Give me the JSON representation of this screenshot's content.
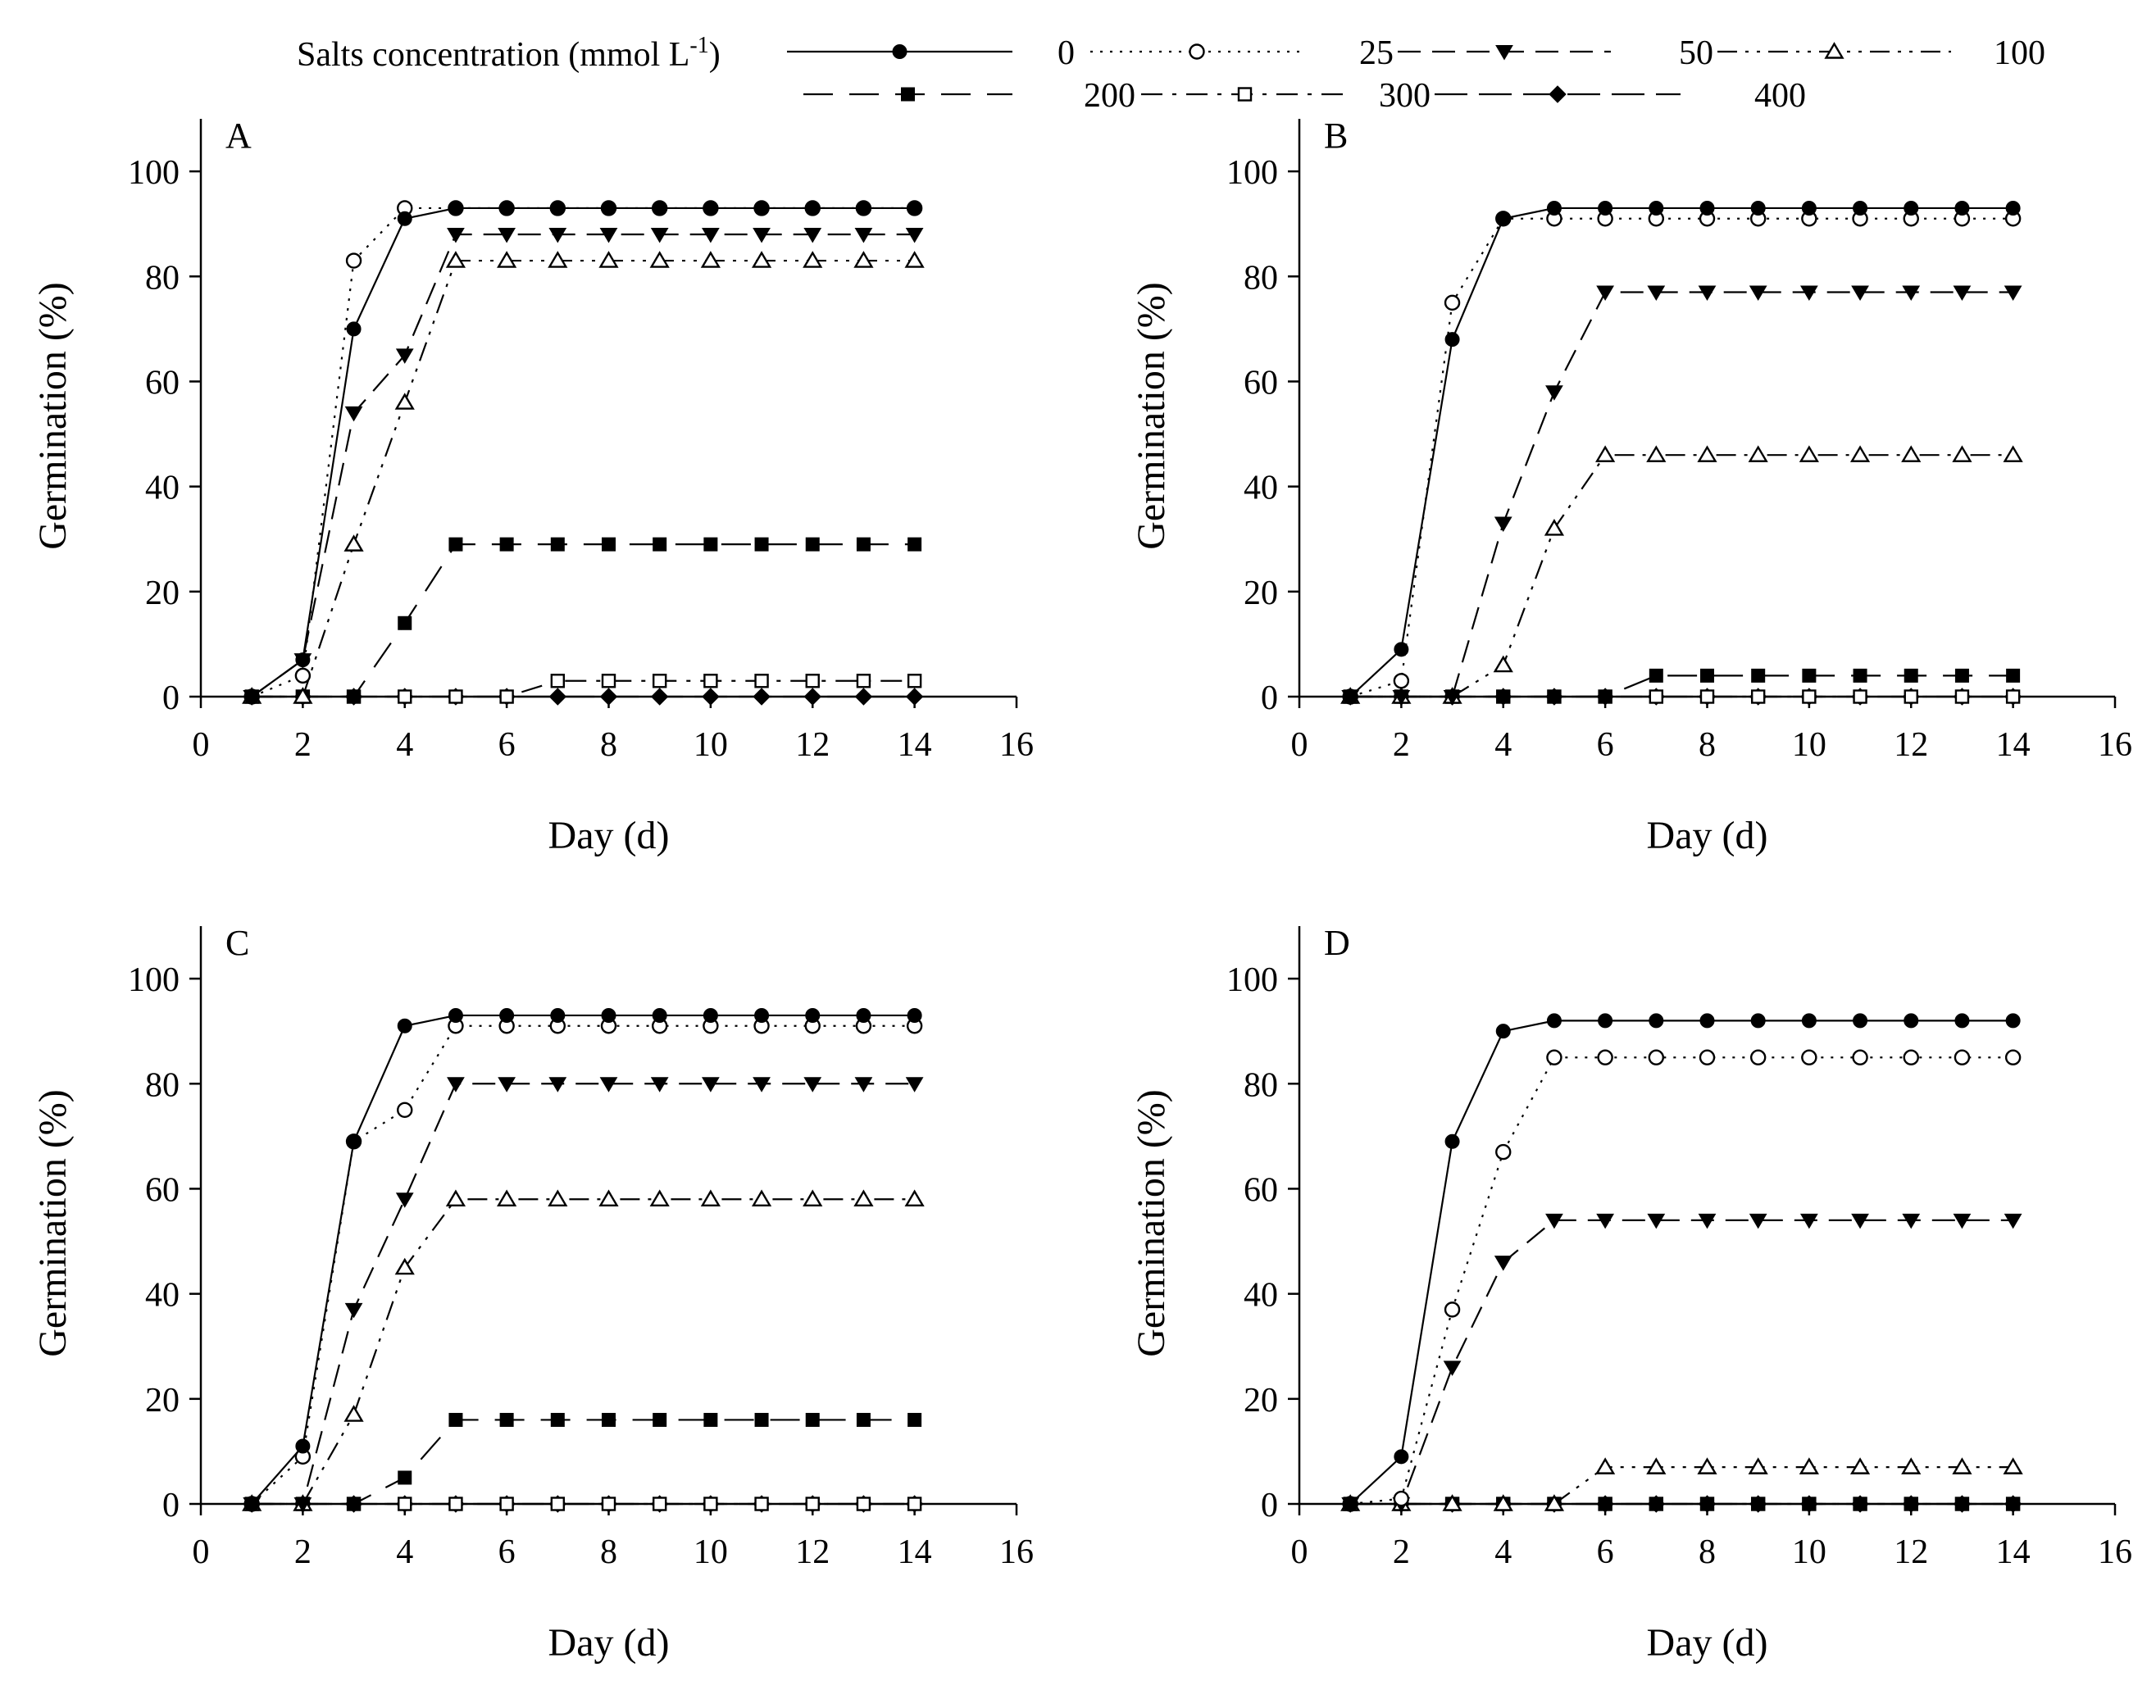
{
  "legend": {
    "title_prefix": "Salts concentration (mmol L",
    "title_superscript": "-1",
    "title_suffix": ")",
    "entries": [
      {
        "label": "0",
        "marker": "filled-circle",
        "dash": "solid"
      },
      {
        "label": "25",
        "marker": "open-circle",
        "dash": "dotted"
      },
      {
        "label": "50",
        "marker": "filled-triangle-down",
        "dash": "dashed"
      },
      {
        "label": "100",
        "marker": "open-triangle-up",
        "dash": "dash-dot-dot"
      },
      {
        "label": "200",
        "marker": "filled-square",
        "dash": "long-dash"
      },
      {
        "label": "300",
        "marker": "open-square",
        "dash": "dash-dot"
      },
      {
        "label": "400",
        "marker": "filled-diamond",
        "dash": "dash-long"
      }
    ]
  },
  "chart_data": [
    {
      "type": "line",
      "panel": "A",
      "xlabel": "Day (d)",
      "ylabel": "Germination  (%)",
      "xlim": [
        0,
        16
      ],
      "ylim": [
        0,
        110
      ],
      "xticks": [
        0,
        2,
        4,
        6,
        8,
        10,
        12,
        14,
        16
      ],
      "yticks": [
        0,
        20,
        40,
        60,
        80,
        100
      ],
      "x": [
        1,
        2,
        3,
        4,
        5,
        6,
        7,
        8,
        9,
        10,
        11,
        12,
        13,
        14
      ],
      "series": [
        {
          "name": "0",
          "values": [
            0,
            7,
            70,
            91,
            93,
            93,
            93,
            93,
            93,
            93,
            93,
            93,
            93,
            93
          ]
        },
        {
          "name": "25",
          "values": [
            0,
            4,
            83,
            93,
            93,
            93,
            93,
            93,
            93,
            93,
            93,
            93,
            93,
            93
          ]
        },
        {
          "name": "50",
          "values": [
            0,
            7,
            54,
            65,
            88,
            88,
            88,
            88,
            88,
            88,
            88,
            88,
            88,
            88
          ]
        },
        {
          "name": "100",
          "values": [
            0,
            0,
            29,
            56,
            83,
            83,
            83,
            83,
            83,
            83,
            83,
            83,
            83,
            83
          ]
        },
        {
          "name": "200",
          "values": [
            0,
            0,
            0,
            14,
            29,
            29,
            29,
            29,
            29,
            29,
            29,
            29,
            29,
            29
          ]
        },
        {
          "name": "300",
          "values": [
            0,
            0,
            0,
            0,
            0,
            0,
            3,
            3,
            3,
            3,
            3,
            3,
            3,
            3
          ]
        },
        {
          "name": "400",
          "values": [
            0,
            0,
            0,
            0,
            0,
            0,
            0,
            0,
            0,
            0,
            0,
            0,
            0,
            0
          ]
        }
      ]
    },
    {
      "type": "line",
      "panel": "B",
      "xlabel": "Day (d)",
      "ylabel": "Germination  (%)",
      "xlim": [
        0,
        16
      ],
      "ylim": [
        0,
        110
      ],
      "xticks": [
        0,
        2,
        4,
        6,
        8,
        10,
        12,
        14,
        16
      ],
      "yticks": [
        0,
        20,
        40,
        60,
        80,
        100
      ],
      "x": [
        1,
        2,
        3,
        4,
        5,
        6,
        7,
        8,
        9,
        10,
        11,
        12,
        13,
        14
      ],
      "series": [
        {
          "name": "0",
          "values": [
            0,
            9,
            68,
            91,
            93,
            93,
            93,
            93,
            93,
            93,
            93,
            93,
            93,
            93
          ]
        },
        {
          "name": "25",
          "values": [
            0,
            3,
            75,
            91,
            91,
            91,
            91,
            91,
            91,
            91,
            91,
            91,
            91,
            91
          ]
        },
        {
          "name": "50",
          "values": [
            0,
            0,
            0,
            33,
            58,
            77,
            77,
            77,
            77,
            77,
            77,
            77,
            77,
            77
          ]
        },
        {
          "name": "100",
          "values": [
            0,
            0,
            0,
            6,
            32,
            46,
            46,
            46,
            46,
            46,
            46,
            46,
            46,
            46
          ]
        },
        {
          "name": "200",
          "values": [
            0,
            0,
            0,
            0,
            0,
            0,
            4,
            4,
            4,
            4,
            4,
            4,
            4,
            4
          ]
        },
        {
          "name": "300",
          "values": [
            0,
            0,
            0,
            0,
            0,
            0,
            0,
            0,
            0,
            0,
            0,
            0,
            0,
            0
          ]
        },
        {
          "name": "400",
          "values": [
            0,
            0,
            0,
            0,
            0,
            0,
            0,
            0,
            0,
            0,
            0,
            0,
            0,
            0
          ]
        }
      ]
    },
    {
      "type": "line",
      "panel": "C",
      "xlabel": "Day (d)",
      "ylabel": "Germination  (%)",
      "xlim": [
        0,
        16
      ],
      "ylim": [
        0,
        110
      ],
      "xticks": [
        0,
        2,
        4,
        6,
        8,
        10,
        12,
        14,
        16
      ],
      "yticks": [
        0,
        20,
        40,
        60,
        80,
        100
      ],
      "x": [
        1,
        2,
        3,
        4,
        5,
        6,
        7,
        8,
        9,
        10,
        11,
        12,
        13,
        14
      ],
      "series": [
        {
          "name": "0",
          "values": [
            0,
            11,
            69,
            91,
            93,
            93,
            93,
            93,
            93,
            93,
            93,
            93,
            93,
            93
          ]
        },
        {
          "name": "25",
          "values": [
            0,
            9,
            69,
            75,
            91,
            91,
            91,
            91,
            91,
            91,
            91,
            91,
            91,
            91
          ]
        },
        {
          "name": "50",
          "values": [
            0,
            0,
            37,
            58,
            80,
            80,
            80,
            80,
            80,
            80,
            80,
            80,
            80,
            80
          ]
        },
        {
          "name": "100",
          "values": [
            0,
            0,
            17,
            45,
            58,
            58,
            58,
            58,
            58,
            58,
            58,
            58,
            58,
            58
          ]
        },
        {
          "name": "200",
          "values": [
            0,
            0,
            0,
            5,
            16,
            16,
            16,
            16,
            16,
            16,
            16,
            16,
            16,
            16
          ]
        },
        {
          "name": "300",
          "values": [
            0,
            0,
            0,
            0,
            0,
            0,
            0,
            0,
            0,
            0,
            0,
            0,
            0,
            0
          ]
        },
        {
          "name": "400",
          "values": [
            0,
            0,
            0,
            0,
            0,
            0,
            0,
            0,
            0,
            0,
            0,
            0,
            0,
            0
          ]
        }
      ]
    },
    {
      "type": "line",
      "panel": "D",
      "xlabel": "Day (d)",
      "ylabel": "Germination  (%)",
      "xlim": [
        0,
        16
      ],
      "ylim": [
        0,
        110
      ],
      "xticks": [
        0,
        2,
        4,
        6,
        8,
        10,
        12,
        14,
        16
      ],
      "yticks": [
        0,
        20,
        40,
        60,
        80,
        100
      ],
      "x": [
        1,
        2,
        3,
        4,
        5,
        6,
        7,
        8,
        9,
        10,
        11,
        12,
        13,
        14
      ],
      "series": [
        {
          "name": "0",
          "values": [
            0,
            9,
            69,
            90,
            92,
            92,
            92,
            92,
            92,
            92,
            92,
            92,
            92,
            92
          ]
        },
        {
          "name": "25",
          "values": [
            0,
            1,
            37,
            67,
            85,
            85,
            85,
            85,
            85,
            85,
            85,
            85,
            85,
            85
          ]
        },
        {
          "name": "50",
          "values": [
            0,
            0,
            26,
            46,
            54,
            54,
            54,
            54,
            54,
            54,
            54,
            54,
            54,
            54
          ]
        },
        {
          "name": "100",
          "values": [
            0,
            0,
            0,
            0,
            0,
            7,
            7,
            7,
            7,
            7,
            7,
            7,
            7,
            7
          ]
        },
        {
          "name": "200",
          "values": [
            0,
            0,
            0,
            0,
            0,
            0,
            0,
            0,
            0,
            0,
            0,
            0,
            0,
            0
          ]
        },
        {
          "name": "300",
          "values": [
            0,
            0,
            0,
            0,
            0,
            0,
            0,
            0,
            0,
            0,
            0,
            0,
            0,
            0
          ]
        },
        {
          "name": "400",
          "values": [
            0,
            0,
            0,
            0,
            0,
            0,
            0,
            0,
            0,
            0,
            0,
            0,
            0,
            0
          ]
        }
      ]
    }
  ]
}
